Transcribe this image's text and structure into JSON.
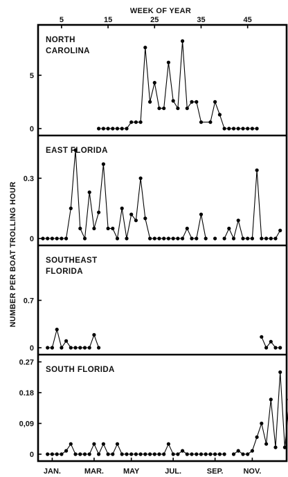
{
  "chart_data": {
    "type": "line",
    "top_axis": {
      "title": "WEEK OF YEAR",
      "ticks": [
        5,
        15,
        25,
        35,
        45
      ],
      "range": [
        1,
        53
      ]
    },
    "y_axis_title": "NUMBER PER BOAT TROLLING HOUR",
    "bottom_axis": {
      "ticks": [
        {
          "label": "JAN.",
          "week": 3
        },
        {
          "label": "MAR.",
          "week": 12
        },
        {
          "label": "MAY",
          "week": 20
        },
        {
          "label": "JUL.",
          "week": 29
        },
        {
          "label": "SEP.",
          "week": 38
        },
        {
          "label": "NOV.",
          "week": 46
        }
      ]
    },
    "panels": [
      {
        "title_lines": [
          "NORTH",
          "CAROLINA"
        ],
        "ylim": [
          0,
          9.2
        ],
        "yticks": [
          {
            "v": 0,
            "label": "0"
          },
          {
            "v": 5,
            "label": "5"
          }
        ],
        "series": [
          [
            [
              13,
              0
            ],
            [
              14,
              0
            ],
            [
              15,
              0
            ],
            [
              16,
              0
            ],
            [
              17,
              0
            ],
            [
              18,
              0
            ],
            [
              19,
              0
            ],
            [
              20,
              0.6
            ],
            [
              21,
              0.6
            ],
            [
              22,
              0.6
            ],
            [
              23,
              7.6
            ],
            [
              24,
              2.5
            ],
            [
              25,
              4.3
            ],
            [
              26,
              1.9
            ],
            [
              27,
              1.9
            ],
            [
              28,
              6.2
            ],
            [
              29,
              2.6
            ],
            [
              30,
              1.9
            ],
            [
              31,
              8.2
            ],
            [
              32,
              1.9
            ],
            [
              33,
              2.5
            ],
            [
              34,
              2.5
            ],
            [
              35,
              0.6
            ],
            [
              37,
              0.6
            ],
            [
              38,
              2.5
            ],
            [
              39,
              1.3
            ],
            [
              40,
              0
            ],
            [
              41,
              0
            ],
            [
              42,
              0
            ],
            [
              43,
              0
            ],
            [
              44,
              0
            ],
            [
              45,
              0
            ],
            [
              46,
              0
            ],
            [
              47,
              0
            ]
          ]
        ]
      },
      {
        "title_lines": [
          "EAST  FLORIDA"
        ],
        "ylim": [
          0,
          0.485
        ],
        "yticks": [
          {
            "v": 0,
            "label": "0"
          },
          {
            "v": 0.3,
            "label": "0.3"
          }
        ],
        "series": [
          [
            [
              1,
              0
            ],
            [
              2,
              0
            ],
            [
              3,
              0
            ],
            [
              4,
              0
            ],
            [
              5,
              0
            ],
            [
              6,
              0
            ],
            [
              7,
              0.15
            ],
            [
              8,
              0.44
            ],
            [
              9,
              0.05
            ],
            [
              10,
              0
            ],
            [
              11,
              0.23
            ],
            [
              12,
              0.05
            ],
            [
              13,
              0.13
            ],
            [
              14,
              0.37
            ],
            [
              15,
              0.05
            ],
            [
              16,
              0.05
            ],
            [
              17,
              0
            ],
            [
              18,
              0.15
            ],
            [
              19,
              0
            ],
            [
              20,
              0.12
            ],
            [
              21,
              0.09
            ],
            [
              22,
              0.3
            ],
            [
              23,
              0.1
            ],
            [
              24,
              0
            ],
            [
              25,
              0
            ],
            [
              26,
              0
            ],
            [
              27,
              0
            ],
            [
              28,
              0
            ],
            [
              29,
              0
            ],
            [
              30,
              0
            ],
            [
              31,
              0
            ],
            [
              32,
              0.05
            ],
            [
              33,
              0
            ],
            [
              34,
              0
            ],
            [
              35,
              0.12
            ],
            [
              36,
              0
            ]
          ],
          [
            [
              38,
              0
            ]
          ],
          [
            [
              40,
              0
            ],
            [
              41,
              0.05
            ],
            [
              42,
              0
            ],
            [
              43,
              0.09
            ],
            [
              44,
              0
            ],
            [
              45,
              0
            ],
            [
              46,
              0
            ],
            [
              47,
              0.34
            ],
            [
              48,
              0
            ],
            [
              49,
              0
            ],
            [
              50,
              0
            ],
            [
              51,
              0
            ],
            [
              52,
              0.04
            ]
          ]
        ]
      },
      {
        "title_lines": [
          "SOUTHEAST",
          "FLORIDA"
        ],
        "ylim": [
          0,
          1.43
        ],
        "yticks": [
          {
            "v": 0,
            "label": "0"
          },
          {
            "v": 0.7,
            "label": "0.7"
          }
        ],
        "series": [
          [
            [
              2,
              0
            ],
            [
              3,
              0
            ],
            [
              4,
              0.27
            ],
            [
              5,
              0
            ],
            [
              6,
              0.1
            ],
            [
              7,
              0
            ],
            [
              8,
              0
            ],
            [
              9,
              0
            ],
            [
              10,
              0
            ],
            [
              11,
              0
            ],
            [
              12,
              0.19
            ],
            [
              13,
              0
            ]
          ],
          [
            [
              48,
              0.16
            ],
            [
              49,
              0
            ],
            [
              50,
              0.09
            ],
            [
              51,
              0
            ],
            [
              52,
              0
            ]
          ]
        ]
      },
      {
        "title_lines": [
          "SOUTH  FLORIDA"
        ],
        "ylim": [
          0,
          0.275
        ],
        "yticks": [
          {
            "v": 0,
            "label": "0"
          },
          {
            "v": 0.09,
            "label": "0,09"
          },
          {
            "v": 0.18,
            "label": "0.18"
          },
          {
            "v": 0.27,
            "label": "0.27"
          }
        ],
        "series": [
          [
            [
              2,
              0
            ],
            [
              3,
              0
            ],
            [
              4,
              0
            ],
            [
              5,
              0
            ],
            [
              6,
              0.01
            ],
            [
              7,
              0.03
            ],
            [
              8,
              0
            ],
            [
              9,
              0
            ],
            [
              10,
              0
            ],
            [
              11,
              0
            ],
            [
              12,
              0.03
            ],
            [
              13,
              0
            ],
            [
              14,
              0.03
            ],
            [
              15,
              0
            ],
            [
              16,
              0
            ],
            [
              17,
              0.03
            ],
            [
              18,
              0
            ],
            [
              19,
              0
            ],
            [
              20,
              0
            ],
            [
              21,
              0
            ],
            [
              22,
              0
            ],
            [
              23,
              0
            ],
            [
              24,
              0
            ],
            [
              25,
              0
            ],
            [
              26,
              0
            ],
            [
              27,
              0
            ],
            [
              28,
              0.03
            ],
            [
              29,
              0
            ],
            [
              30,
              0
            ],
            [
              31,
              0.01
            ],
            [
              32,
              0
            ],
            [
              33,
              0
            ],
            [
              34,
              0
            ],
            [
              35,
              0
            ],
            [
              36,
              0
            ],
            [
              37,
              0
            ],
            [
              38,
              0
            ],
            [
              39,
              0
            ],
            [
              40,
              0
            ]
          ],
          [
            [
              42,
              0
            ],
            [
              43,
              0.01
            ],
            [
              44,
              0
            ],
            [
              45,
              0
            ],
            [
              46,
              0.01
            ],
            [
              47,
              0.05
            ],
            [
              48,
              0.09
            ],
            [
              49,
              0.03
            ],
            [
              50,
              0.16
            ],
            [
              51,
              0.02
            ],
            [
              52,
              0.24
            ],
            [
              53,
              0.02
            ],
            [
              54,
              0.16
            ],
            [
              55,
              0
            ]
          ]
        ]
      }
    ]
  }
}
